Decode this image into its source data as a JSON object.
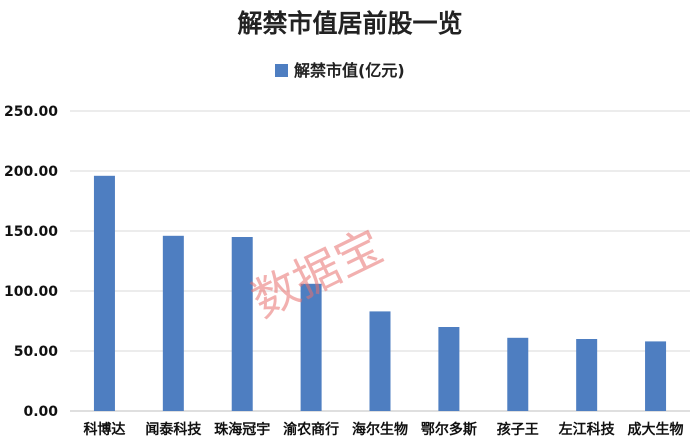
{
  "colors": {
    "bar": "#4e7ec1",
    "watermark": "#e8706f"
  },
  "watermark": "数据宝",
  "chart_data": {
    "type": "bar",
    "title": "解禁市值居前股一览",
    "legend_position": "top",
    "grid": true,
    "ylim": [
      0,
      250
    ],
    "yticks": [
      "0.00",
      "50.00",
      "100.00",
      "150.00",
      "200.00",
      "250.00"
    ],
    "categories": [
      "科博达",
      "闻泰科技",
      "珠海冠宇",
      "渝农商行",
      "海尔生物",
      "鄂尔多斯",
      "孩子王",
      "左江科技",
      "成大生物"
    ],
    "series": [
      {
        "name": "解禁市值(亿元)",
        "values": [
          196,
          146,
          145,
          106,
          83,
          70,
          61,
          60,
          58
        ]
      }
    ]
  }
}
